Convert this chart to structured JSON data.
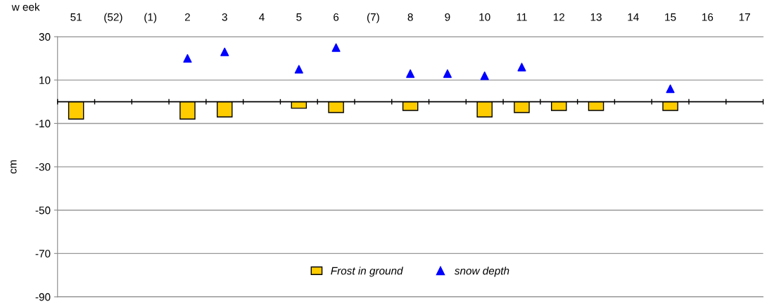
{
  "chart_data": {
    "type": "bar",
    "xlabel": "w eek",
    "ylabel": "cm",
    "categories": [
      "51",
      "(52)",
      "(1)",
      "2",
      "3",
      "4",
      "5",
      "6",
      "(7)",
      "8",
      "9",
      "10",
      "11",
      "12",
      "13",
      "14",
      "15",
      "16",
      "17"
    ],
    "series": [
      {
        "name": "Frost in ground",
        "color": "#ffcc00",
        "values": [
          -8,
          null,
          null,
          -8,
          -7,
          null,
          -3,
          -5,
          null,
          -4,
          null,
          -7,
          -5,
          -4,
          -4,
          null,
          -4,
          null,
          null
        ]
      },
      {
        "name": "snow depth",
        "type": "scatter",
        "marker": "triangle",
        "color": "#0000ff",
        "values": [
          null,
          null,
          null,
          20,
          23,
          null,
          15,
          25,
          null,
          13,
          13,
          12,
          16,
          null,
          null,
          null,
          6,
          null,
          null
        ]
      }
    ],
    "ylim": [
      -90,
      30
    ],
    "yticks": [
      -90,
      -70,
      -50,
      -30,
      -10,
      10,
      30
    ],
    "grid": "y",
    "legend": "bottom"
  }
}
